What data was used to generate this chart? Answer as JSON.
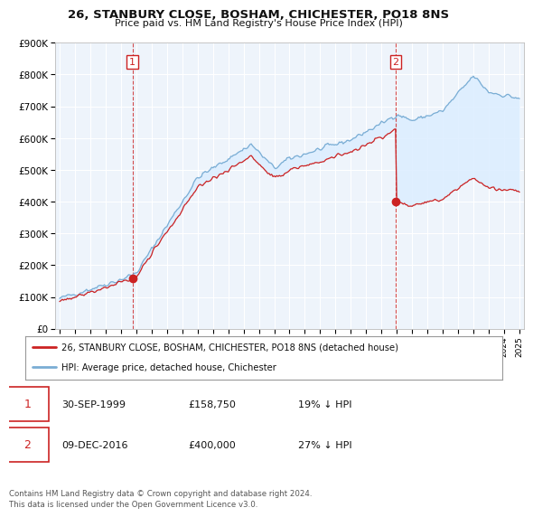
{
  "title": "26, STANBURY CLOSE, BOSHAM, CHICHESTER, PO18 8NS",
  "subtitle": "Price paid vs. HM Land Registry's House Price Index (HPI)",
  "ylim": [
    0,
    900000
  ],
  "yticks": [
    0,
    100000,
    200000,
    300000,
    400000,
    500000,
    600000,
    700000,
    800000,
    900000
  ],
  "ytick_labels": [
    "£0",
    "£100K",
    "£200K",
    "£300K",
    "£400K",
    "£500K",
    "£600K",
    "£700K",
    "£800K",
    "£900K"
  ],
  "sale1_date": "30-SEP-1999",
  "sale1_price": 158750,
  "sale1_hpi": "19% ↓ HPI",
  "sale1_x": 1999.75,
  "sale2_date": "09-DEC-2016",
  "sale2_price": 400000,
  "sale2_hpi": "27% ↓ HPI",
  "sale2_x": 2016.93,
  "red_line_color": "#cc2222",
  "blue_line_color": "#7aadd4",
  "fill_color": "#ddeeff",
  "vline_color": "#cc2222",
  "legend_label1": "26, STANBURY CLOSE, BOSHAM, CHICHESTER, PO18 8NS (detached house)",
  "legend_label2": "HPI: Average price, detached house, Chichester",
  "footnote": "Contains HM Land Registry data © Crown copyright and database right 2024.\nThis data is licensed under the Open Government Licence v3.0.",
  "background_color": "#ffffff",
  "plot_bg_color": "#eef4fb",
  "grid_color": "#ffffff"
}
